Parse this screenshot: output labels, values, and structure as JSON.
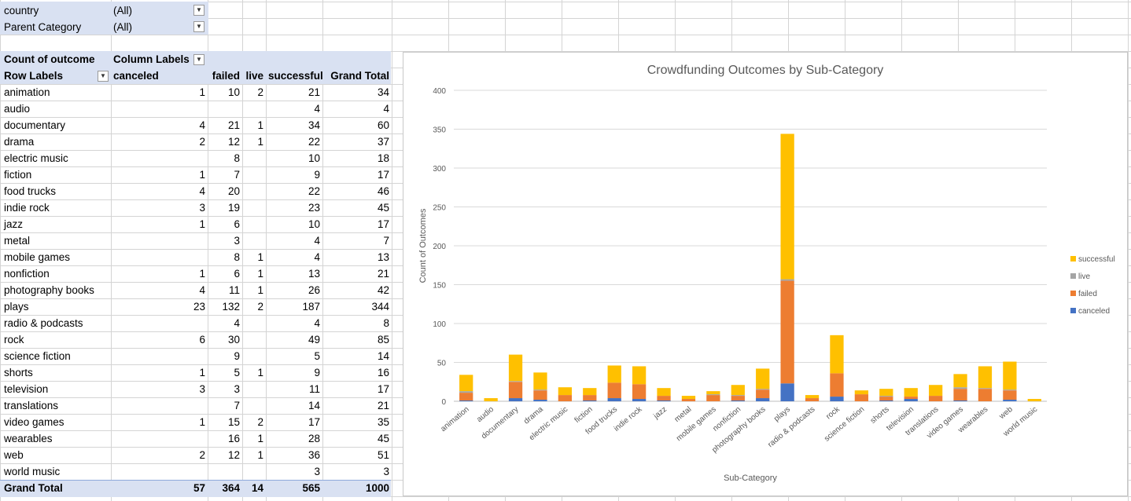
{
  "filters": [
    {
      "label": "country",
      "value": "(All)"
    },
    {
      "label": "Parent Category",
      "value": "(All)"
    }
  ],
  "pivot": {
    "corner_label": "Count of outcome",
    "column_labels": "Column Labels",
    "row_labels": "Row Labels",
    "headers": [
      "canceled",
      "failed",
      "live",
      "successful",
      "Grand Total"
    ],
    "rows": [
      {
        "label": "animation",
        "canceled": "1",
        "failed": "10",
        "live": "2",
        "successful": "21",
        "total": "34"
      },
      {
        "label": "audio",
        "canceled": "",
        "failed": "",
        "live": "",
        "successful": "4",
        "total": "4"
      },
      {
        "label": "documentary",
        "canceled": "4",
        "failed": "21",
        "live": "1",
        "successful": "34",
        "total": "60"
      },
      {
        "label": "drama",
        "canceled": "2",
        "failed": "12",
        "live": "1",
        "successful": "22",
        "total": "37"
      },
      {
        "label": "electric music",
        "canceled": "",
        "failed": "8",
        "live": "",
        "successful": "10",
        "total": "18"
      },
      {
        "label": "fiction",
        "canceled": "1",
        "failed": "7",
        "live": "",
        "successful": "9",
        "total": "17"
      },
      {
        "label": "food trucks",
        "canceled": "4",
        "failed": "20",
        "live": "",
        "successful": "22",
        "total": "46"
      },
      {
        "label": "indie rock",
        "canceled": "3",
        "failed": "19",
        "live": "",
        "successful": "23",
        "total": "45"
      },
      {
        "label": "jazz",
        "canceled": "1",
        "failed": "6",
        "live": "",
        "successful": "10",
        "total": "17"
      },
      {
        "label": "metal",
        "canceled": "",
        "failed": "3",
        "live": "",
        "successful": "4",
        "total": "7"
      },
      {
        "label": "mobile games",
        "canceled": "",
        "failed": "8",
        "live": "1",
        "successful": "4",
        "total": "13"
      },
      {
        "label": "nonfiction",
        "canceled": "1",
        "failed": "6",
        "live": "1",
        "successful": "13",
        "total": "21"
      },
      {
        "label": "photography books",
        "canceled": "4",
        "failed": "11",
        "live": "1",
        "successful": "26",
        "total": "42"
      },
      {
        "label": "plays",
        "canceled": "23",
        "failed": "132",
        "live": "2",
        "successful": "187",
        "total": "344"
      },
      {
        "label": "radio & podcasts",
        "canceled": "",
        "failed": "4",
        "live": "",
        "successful": "4",
        "total": "8"
      },
      {
        "label": "rock",
        "canceled": "6",
        "failed": "30",
        "live": "",
        "successful": "49",
        "total": "85"
      },
      {
        "label": "science fiction",
        "canceled": "",
        "failed": "9",
        "live": "",
        "successful": "5",
        "total": "14"
      },
      {
        "label": "shorts",
        "canceled": "1",
        "failed": "5",
        "live": "1",
        "successful": "9",
        "total": "16"
      },
      {
        "label": "television",
        "canceled": "3",
        "failed": "3",
        "live": "",
        "successful": "11",
        "total": "17"
      },
      {
        "label": "translations",
        "canceled": "",
        "failed": "7",
        "live": "",
        "successful": "14",
        "total": "21"
      },
      {
        "label": "video games",
        "canceled": "1",
        "failed": "15",
        "live": "2",
        "successful": "17",
        "total": "35"
      },
      {
        "label": "wearables",
        "canceled": "",
        "failed": "16",
        "live": "1",
        "successful": "28",
        "total": "45"
      },
      {
        "label": "web",
        "canceled": "2",
        "failed": "12",
        "live": "1",
        "successful": "36",
        "total": "51"
      },
      {
        "label": "world music",
        "canceled": "",
        "failed": "",
        "live": "",
        "successful": "3",
        "total": "3"
      }
    ],
    "grand_total": {
      "label": "Grand Total",
      "canceled": "57",
      "failed": "364",
      "live": "14",
      "successful": "565",
      "total": "1000"
    }
  },
  "chart_data": {
    "type": "bar",
    "stacked": true,
    "title": "Crowdfunding Outcomes by Sub-Category",
    "xlabel": "Sub-Category",
    "ylabel": "Count of Outcomes",
    "ylim": [
      0,
      400
    ],
    "yticks": [
      0,
      50,
      100,
      150,
      200,
      250,
      300,
      350,
      400
    ],
    "grid": true,
    "legend_position": "right",
    "categories": [
      "animation",
      "audio",
      "documentary",
      "drama",
      "electric music",
      "fiction",
      "food trucks",
      "indie rock",
      "jazz",
      "metal",
      "mobile games",
      "nonfiction",
      "photography books",
      "plays",
      "radio & podcasts",
      "rock",
      "science fiction",
      "shorts",
      "television",
      "translations",
      "video games",
      "wearables",
      "web",
      "world music"
    ],
    "series": [
      {
        "name": "canceled",
        "color": "#4472c4",
        "values": [
          1,
          0,
          4,
          2,
          0,
          1,
          4,
          3,
          1,
          0,
          0,
          1,
          4,
          23,
          0,
          6,
          0,
          1,
          3,
          0,
          1,
          0,
          2,
          0
        ]
      },
      {
        "name": "failed",
        "color": "#ed7d31",
        "values": [
          10,
          0,
          21,
          12,
          8,
          7,
          20,
          19,
          6,
          3,
          8,
          6,
          11,
          132,
          4,
          30,
          9,
          5,
          3,
          7,
          15,
          16,
          12,
          0
        ]
      },
      {
        "name": "live",
        "color": "#a5a5a5",
        "values": [
          2,
          0,
          1,
          1,
          0,
          0,
          0,
          0,
          0,
          0,
          1,
          1,
          1,
          2,
          0,
          0,
          0,
          1,
          0,
          0,
          2,
          1,
          1,
          0
        ]
      },
      {
        "name": "successful",
        "color": "#ffc000",
        "values": [
          21,
          4,
          34,
          22,
          10,
          9,
          22,
          23,
          10,
          4,
          4,
          13,
          26,
          187,
          4,
          49,
          5,
          9,
          11,
          14,
          17,
          28,
          36,
          3
        ]
      }
    ],
    "legend_order": [
      "successful",
      "live",
      "failed",
      "canceled"
    ]
  },
  "colors": {
    "header_band": "#d9e1f2",
    "gridline": "#d4d4d4"
  }
}
